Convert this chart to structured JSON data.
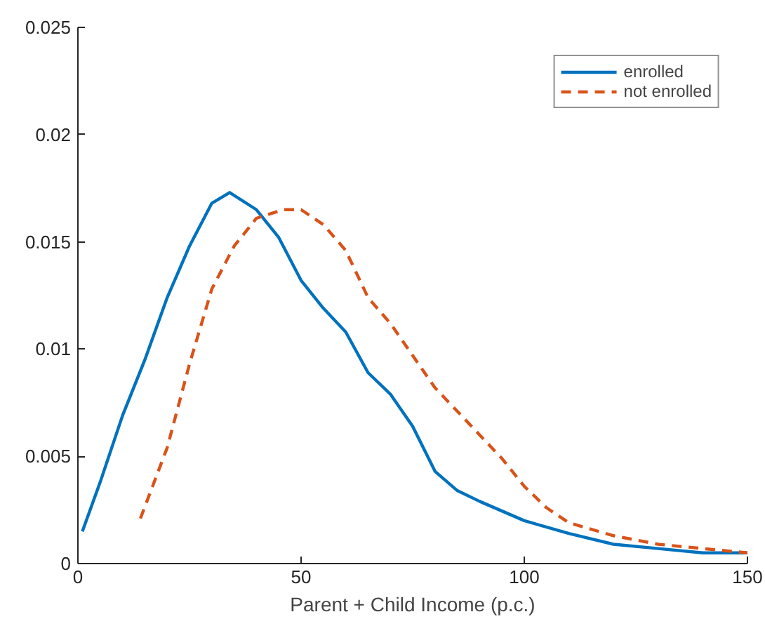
{
  "chart_data": {
    "type": "line",
    "xlabel": "Parent + Child Income (p.c.)",
    "xlim": [
      0,
      150
    ],
    "xticks": [
      0,
      50,
      100,
      150
    ],
    "ylim": [
      0,
      0.025
    ],
    "yticks": [
      0,
      0.005,
      0.01,
      0.015,
      0.02,
      0.025
    ],
    "grid": false,
    "legend": "top right",
    "series": [
      {
        "name": "enrolled",
        "color": "#0072bd",
        "line_style": "solid",
        "x": [
          1,
          5,
          10,
          15,
          20,
          25,
          30,
          34,
          40,
          45,
          50,
          55,
          60,
          65,
          70,
          75,
          80,
          85,
          90,
          100,
          110,
          120,
          130,
          140,
          150
        ],
        "values": [
          0.0015,
          0.0038,
          0.0069,
          0.0095,
          0.0124,
          0.0148,
          0.0168,
          0.0173,
          0.0165,
          0.0152,
          0.0132,
          0.0119,
          0.0108,
          0.0089,
          0.0079,
          0.0064,
          0.0043,
          0.0034,
          0.0029,
          0.002,
          0.0014,
          0.0009,
          0.0007,
          0.0005,
          0.0005
        ]
      },
      {
        "name": "not enrolled",
        "color": "#d95319",
        "line_style": "dashed",
        "x": [
          14,
          20,
          25,
          30,
          35,
          40,
          46,
          50,
          55,
          60,
          65,
          70,
          75,
          80,
          85,
          90,
          95,
          100,
          105,
          110,
          120,
          130,
          140,
          150
        ],
        "values": [
          0.0021,
          0.0054,
          0.0093,
          0.0128,
          0.0148,
          0.0161,
          0.0165,
          0.0165,
          0.0158,
          0.0146,
          0.0124,
          0.0112,
          0.0097,
          0.0082,
          0.0071,
          0.006,
          0.0049,
          0.0036,
          0.0026,
          0.0019,
          0.0013,
          0.0009,
          0.0007,
          0.0005
        ]
      }
    ]
  }
}
